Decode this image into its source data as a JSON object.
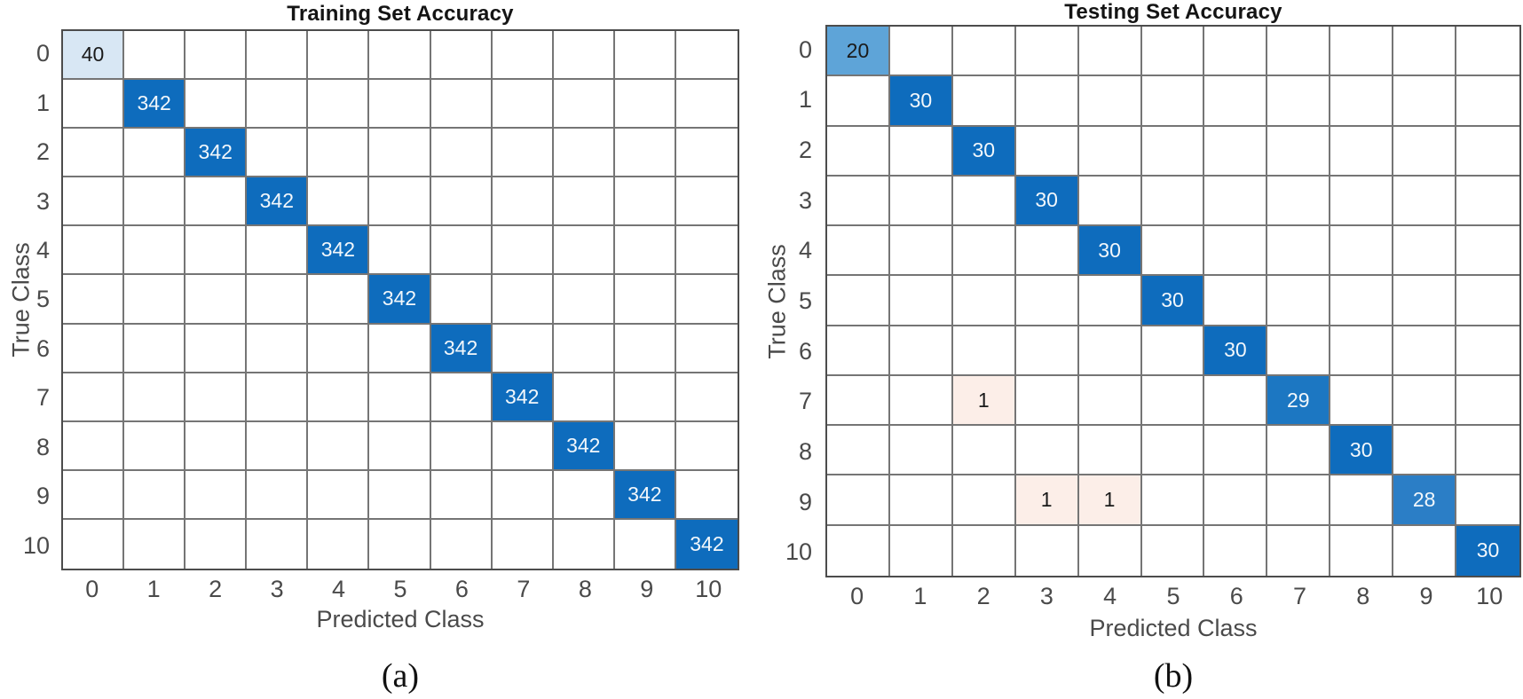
{
  "page": {
    "background": "#ffffff"
  },
  "captions": {
    "a": "(a)",
    "b": "(b)"
  },
  "colors": {
    "diagonal_full": "#0e6cbd",
    "diagonal_29": "#1c77c2",
    "diagonal_28": "#2b7ec6",
    "diagonal_20": "#5ea4d8",
    "diagonal_40_light": "#d8e7f4",
    "offdiagonal_miss": "#fceee8",
    "grid_line": "#757575",
    "axis_text": "#4a4a4a"
  },
  "chart_data": [
    {
      "type": "heatmap",
      "title": "Training Set Accuracy",
      "xlabel": "Predicted Class",
      "ylabel": "True Class",
      "grid": "on",
      "x_ticks": [
        "0",
        "1",
        "2",
        "3",
        "4",
        "5",
        "6",
        "7",
        "8",
        "9",
        "10"
      ],
      "y_ticks": [
        "0",
        "1",
        "2",
        "3",
        "4",
        "5",
        "6",
        "7",
        "8",
        "9",
        "10"
      ],
      "cells": [
        {
          "row": 0,
          "col": 0,
          "value": 40,
          "bg": "#d8e7f4",
          "fg": "#1a1a1a"
        },
        {
          "row": 1,
          "col": 1,
          "value": 342,
          "bg": "#0e6cbd",
          "fg": "#f2f7fb"
        },
        {
          "row": 2,
          "col": 2,
          "value": 342,
          "bg": "#0e6cbd",
          "fg": "#f2f7fb"
        },
        {
          "row": 3,
          "col": 3,
          "value": 342,
          "bg": "#0e6cbd",
          "fg": "#f2f7fb"
        },
        {
          "row": 4,
          "col": 4,
          "value": 342,
          "bg": "#0e6cbd",
          "fg": "#f2f7fb"
        },
        {
          "row": 5,
          "col": 5,
          "value": 342,
          "bg": "#0e6cbd",
          "fg": "#f2f7fb"
        },
        {
          "row": 6,
          "col": 6,
          "value": 342,
          "bg": "#0e6cbd",
          "fg": "#f2f7fb"
        },
        {
          "row": 7,
          "col": 7,
          "value": 342,
          "bg": "#0e6cbd",
          "fg": "#f2f7fb"
        },
        {
          "row": 8,
          "col": 8,
          "value": 342,
          "bg": "#0e6cbd",
          "fg": "#f2f7fb"
        },
        {
          "row": 9,
          "col": 9,
          "value": 342,
          "bg": "#0e6cbd",
          "fg": "#f2f7fb"
        },
        {
          "row": 10,
          "col": 10,
          "value": 342,
          "bg": "#0e6cbd",
          "fg": "#f2f7fb"
        }
      ]
    },
    {
      "type": "heatmap",
      "title": "Testing Set Accuracy",
      "xlabel": "Predicted Class",
      "ylabel": "True Class",
      "grid": "on",
      "x_ticks": [
        "0",
        "1",
        "2",
        "3",
        "4",
        "5",
        "6",
        "7",
        "8",
        "9",
        "10"
      ],
      "y_ticks": [
        "0",
        "1",
        "2",
        "3",
        "4",
        "5",
        "6",
        "7",
        "8",
        "9",
        "10"
      ],
      "cells": [
        {
          "row": 0,
          "col": 0,
          "value": 20,
          "bg": "#5ea4d8",
          "fg": "#1a1a1a"
        },
        {
          "row": 1,
          "col": 1,
          "value": 30,
          "bg": "#0e6cbd",
          "fg": "#f2f7fb"
        },
        {
          "row": 2,
          "col": 2,
          "value": 30,
          "bg": "#0e6cbd",
          "fg": "#f2f7fb"
        },
        {
          "row": 3,
          "col": 3,
          "value": 30,
          "bg": "#0e6cbd",
          "fg": "#f2f7fb"
        },
        {
          "row": 4,
          "col": 4,
          "value": 30,
          "bg": "#0e6cbd",
          "fg": "#f2f7fb"
        },
        {
          "row": 5,
          "col": 5,
          "value": 30,
          "bg": "#0e6cbd",
          "fg": "#f2f7fb"
        },
        {
          "row": 6,
          "col": 6,
          "value": 30,
          "bg": "#0e6cbd",
          "fg": "#f2f7fb"
        },
        {
          "row": 7,
          "col": 2,
          "value": 1,
          "bg": "#fceee8",
          "fg": "#1a1a1a"
        },
        {
          "row": 7,
          "col": 7,
          "value": 29,
          "bg": "#1c77c2",
          "fg": "#f2f7fb"
        },
        {
          "row": 8,
          "col": 8,
          "value": 30,
          "bg": "#0e6cbd",
          "fg": "#f2f7fb"
        },
        {
          "row": 9,
          "col": 3,
          "value": 1,
          "bg": "#fceee8",
          "fg": "#1a1a1a"
        },
        {
          "row": 9,
          "col": 4,
          "value": 1,
          "bg": "#fceee8",
          "fg": "#1a1a1a"
        },
        {
          "row": 9,
          "col": 9,
          "value": 28,
          "bg": "#2b7ec6",
          "fg": "#f2f7fb"
        },
        {
          "row": 10,
          "col": 10,
          "value": 30,
          "bg": "#0e6cbd",
          "fg": "#f2f7fb"
        }
      ]
    }
  ]
}
